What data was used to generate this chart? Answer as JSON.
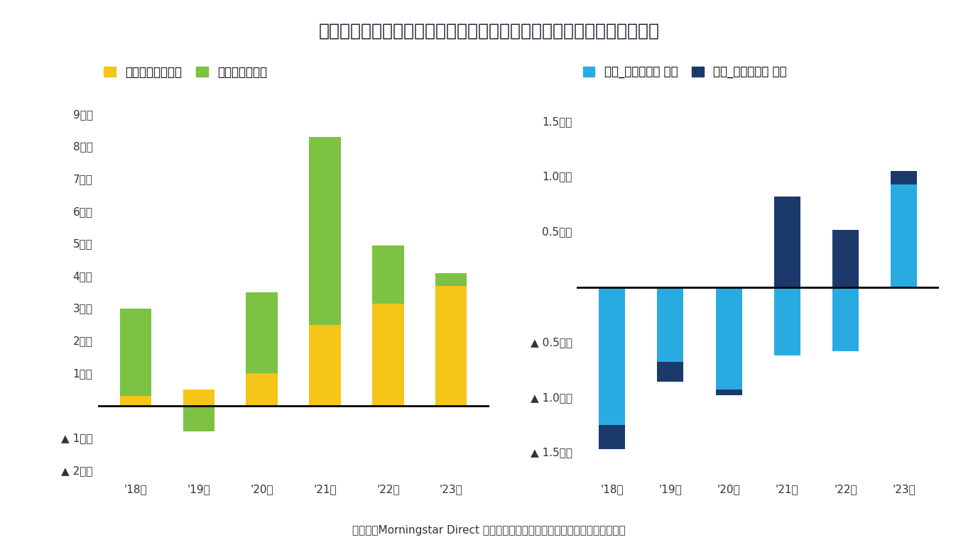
{
  "title": "図表２：外国株式投信（左）と外国債券投信（右）の資金流出入の推移",
  "title_fontsize": 18,
  "background_color": "#ffffff",
  "caption": "（資料）Morningstar Direct より筆者作成。イボットソン分類を用いて集計。",
  "left_chart": {
    "years": [
      "'18年",
      "'19年",
      "'20年",
      "'21年",
      "'22年",
      "'23年"
    ],
    "index_values": [
      0.3,
      0.5,
      1.0,
      2.5,
      3.15,
      3.7
    ],
    "active_values": [
      2.7,
      -0.8,
      2.5,
      5.8,
      1.8,
      0.4
    ],
    "index_color": "#F5C518",
    "active_color": "#7DC242",
    "ylim": [
      -2.3,
      9.3
    ],
    "yticklabels_pos": [
      1,
      2,
      3,
      4,
      5,
      6,
      7,
      8,
      9
    ],
    "yticklabels_neg": [
      -1,
      -2
    ],
    "legend1": "外株インデックス",
    "legend2": "外株アクティブ"
  },
  "right_chart": {
    "years": [
      "'18年",
      "'19年",
      "'20年",
      "'21年",
      "'22年",
      "'23年"
    ],
    "no_hedge_values": [
      -1.25,
      -0.68,
      -0.93,
      -0.62,
      -0.58,
      0.93
    ],
    "hedge_values": [
      -0.22,
      -0.18,
      -0.05,
      0.82,
      0.52,
      0.12
    ],
    "no_hedge_color": "#29ABE2",
    "hedge_color": "#1B3A6B",
    "ylim": [
      -1.75,
      1.65
    ],
    "legend1": "外債_為替ヘッジ なし",
    "legend2": "外債_為替ヘッジ あり"
  }
}
